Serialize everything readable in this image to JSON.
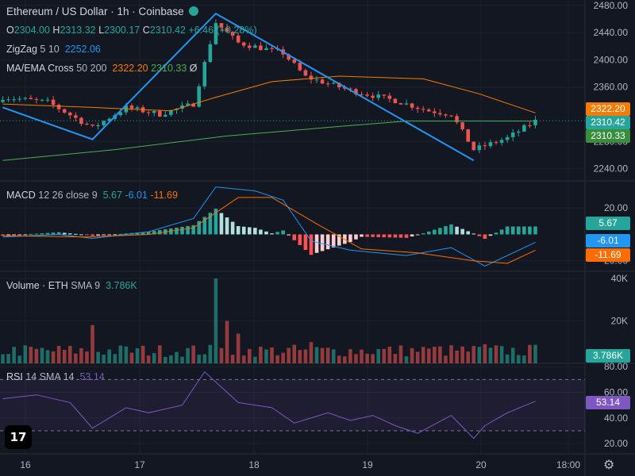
{
  "header": {
    "title": "Ethereum / US Dollar · 1h · Coinbase",
    "ohlc": {
      "o_label": "O",
      "o": "2304.00",
      "h_label": "H",
      "h": "2313.32",
      "l_label": "L",
      "l": "2300.17",
      "c_label": "C",
      "c": "2310.42",
      "change": "+6.46 (+0.28%)"
    }
  },
  "indicators": {
    "zigzag": {
      "name": "ZigZag",
      "params": "5 10",
      "value": "2252.06"
    },
    "maema": {
      "name": "MA/EMA Cross",
      "params": "50 200",
      "v1": "2322.20",
      "v2": "2310.33",
      "extra": "Ø"
    },
    "macd": {
      "name": "MACD",
      "params": "12 26 close 9",
      "hist": "5.67",
      "macd": "-6.01",
      "signal": "-11.69"
    },
    "volume": {
      "name": "Volume · ETH",
      "params": "SMA 9",
      "value": "3.786K"
    },
    "rsi": {
      "name": "RSI",
      "params": "14 SMA 14",
      "value": "53.14"
    }
  },
  "badges": {
    "ema50": "2322.20",
    "price": "2310.42",
    "ema200": "2310.33",
    "macd_hist": "5.67",
    "macd": "-6.01",
    "macd_signal": "-11.69",
    "volume": "3.786K",
    "rsi": "53.14"
  },
  "colors": {
    "up": "#26a69a",
    "down": "#ef5350",
    "zigzag": "#2196f3",
    "ema50": "#f57c00",
    "ema200": "#4caf50",
    "macd": "#2196f3",
    "signal": "#ff6d00",
    "rsi": "#7e57c2",
    "price_line": "#26a69a"
  },
  "chart_data": {
    "type": "candlestick",
    "price_axis": {
      "ticks": [
        "2480.00",
        "2440.00",
        "2400.00",
        "2360.00",
        "2280.00",
        "2240.00"
      ],
      "tick_values": [
        2480,
        2440,
        2400,
        2360,
        2280,
        2240
      ],
      "range": [
        2222,
        2488
      ]
    },
    "macd_axis": {
      "ticks": [
        "20.00",
        "-20.00"
      ],
      "tick_values": [
        20,
        -20
      ],
      "range": [
        -28,
        40
      ]
    },
    "volume_axis": {
      "ticks": [
        "40K",
        "20K"
      ],
      "tick_values": [
        40,
        20
      ],
      "range": [
        0,
        43
      ]
    },
    "rsi_axis": {
      "ticks": [
        "80.00",
        "60.00",
        "40.00",
        "20.00"
      ],
      "tick_values": [
        80,
        60,
        40,
        20
      ],
      "range": [
        12,
        82
      ],
      "bands": [
        70,
        30
      ]
    },
    "time_axis": {
      "labels": [
        "16",
        "17",
        "18",
        "19",
        "20",
        "18:00"
      ]
    },
    "candle_count": 96,
    "zigzag": [
      {
        "i": 0,
        "v": 2330
      },
      {
        "i": 16,
        "v": 2283
      },
      {
        "i": 38,
        "v": 2468
      },
      {
        "i": 84,
        "v": 2252
      }
    ],
    "ema50": [
      [
        0,
        2335
      ],
      [
        16,
        2330
      ],
      [
        30,
        2325
      ],
      [
        38,
        2345
      ],
      [
        48,
        2368
      ],
      [
        60,
        2376
      ],
      [
        75,
        2372
      ],
      [
        85,
        2350
      ],
      [
        95,
        2322
      ]
    ],
    "ema200": [
      [
        0,
        2252
      ],
      [
        20,
        2268
      ],
      [
        40,
        2288
      ],
      [
        60,
        2302
      ],
      [
        72,
        2310
      ],
      [
        95,
        2310
      ]
    ],
    "macd": [
      [
        0,
        -2
      ],
      [
        10,
        0
      ],
      [
        16,
        -3
      ],
      [
        26,
        2
      ],
      [
        34,
        12
      ],
      [
        38,
        36
      ],
      [
        45,
        33
      ],
      [
        50,
        26
      ],
      [
        55,
        -5
      ],
      [
        62,
        -12
      ],
      [
        72,
        -16
      ],
      [
        80,
        -10
      ],
      [
        86,
        -24
      ],
      [
        95,
        -6
      ]
    ],
    "signal": [
      [
        0,
        -1
      ],
      [
        15,
        -2
      ],
      [
        26,
        0
      ],
      [
        34,
        5
      ],
      [
        42,
        28
      ],
      [
        48,
        28
      ],
      [
        56,
        8
      ],
      [
        64,
        -11
      ],
      [
        74,
        -14
      ],
      [
        84,
        -20
      ],
      [
        90,
        -22
      ],
      [
        95,
        -12
      ]
    ],
    "rsi": [
      [
        0,
        55
      ],
      [
        6,
        58
      ],
      [
        12,
        52
      ],
      [
        16,
        32
      ],
      [
        22,
        48
      ],
      [
        26,
        44
      ],
      [
        32,
        50
      ],
      [
        36,
        76
      ],
      [
        42,
        52
      ],
      [
        48,
        48
      ],
      [
        52,
        36
      ],
      [
        58,
        44
      ],
      [
        62,
        38
      ],
      [
        66,
        42
      ],
      [
        70,
        34
      ],
      [
        74,
        28
      ],
      [
        80,
        42
      ],
      [
        84,
        24
      ],
      [
        86,
        34
      ],
      [
        90,
        44
      ],
      [
        95,
        53
      ]
    ]
  }
}
